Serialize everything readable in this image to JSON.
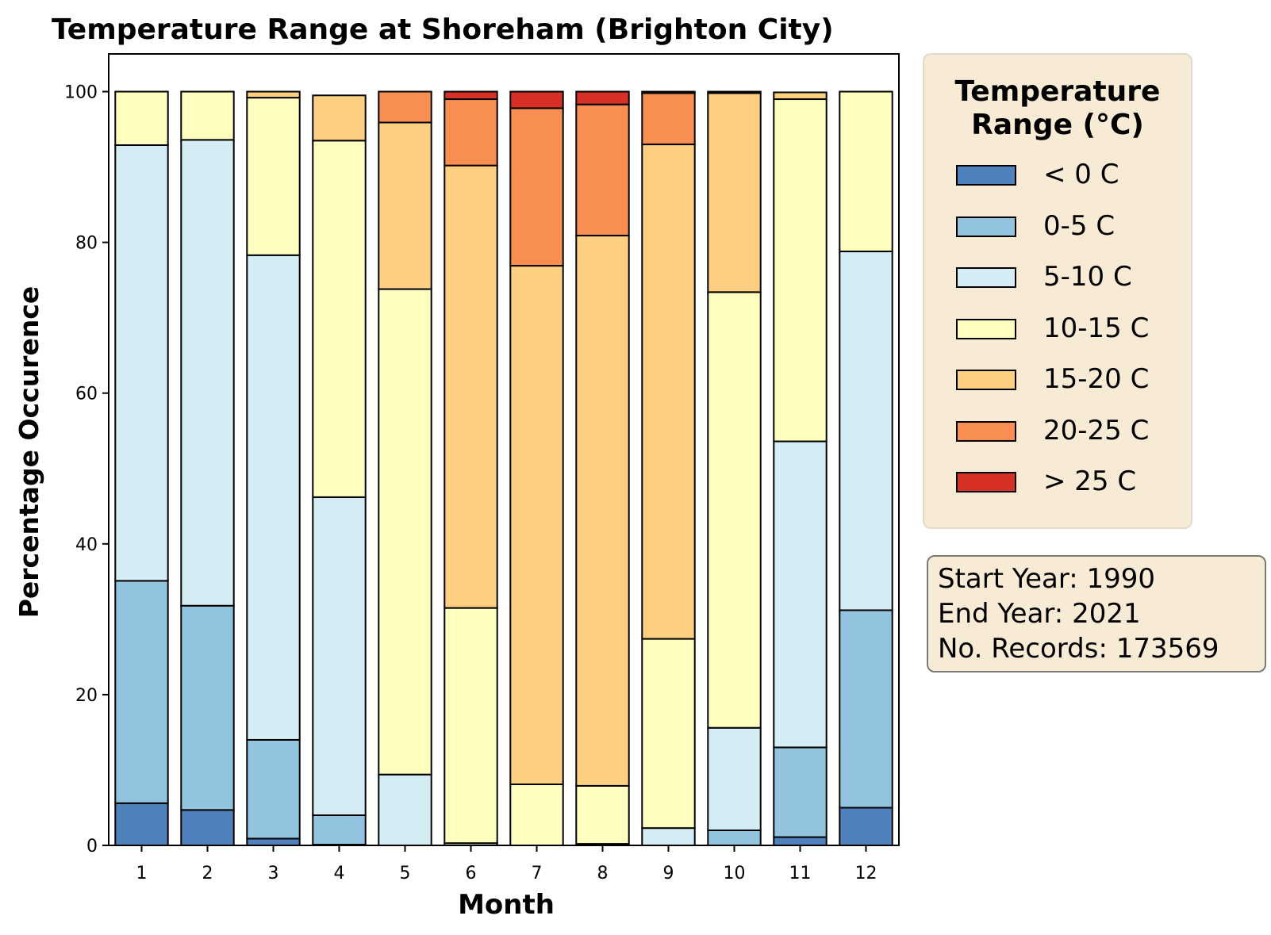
{
  "chart_data": {
    "type": "bar",
    "stacked": true,
    "title": "Temperature Range at Shoreham (Brighton City)",
    "xlabel": "Month",
    "ylabel": "Percentage Occurence",
    "ylim": [
      0,
      105
    ],
    "yticks": [
      0,
      20,
      40,
      60,
      80,
      100
    ],
    "categories": [
      "1",
      "2",
      "3",
      "4",
      "5",
      "6",
      "7",
      "8",
      "9",
      "10",
      "11",
      "12"
    ],
    "series": [
      {
        "name": "< 0 C",
        "color": "#4f81bd",
        "values": [
          5.6,
          4.7,
          0.9,
          0.1,
          0,
          0,
          0,
          0,
          0,
          0,
          1.1,
          5.0
        ]
      },
      {
        "name": "0-5 C",
        "color": "#92c4df",
        "values": [
          29.5,
          27.1,
          13.1,
          3.9,
          0,
          0,
          0,
          0,
          0,
          2.0,
          11.9,
          26.2
        ]
      },
      {
        "name": "5-10 C",
        "color": "#d4ecf3",
        "values": [
          57.8,
          61.8,
          64.3,
          42.2,
          9.4,
          0.3,
          0,
          0.2,
          2.3,
          13.6,
          40.6,
          47.6
        ]
      },
      {
        "name": "10-15 C",
        "color": "#fefebe",
        "values": [
          7.1,
          6.4,
          20.9,
          47.3,
          64.4,
          31.2,
          8.1,
          7.7,
          25.1,
          57.8,
          45.4,
          21.2
        ]
      },
      {
        "name": "15-20 C",
        "color": "#fccf81",
        "values": [
          0,
          0,
          0.8,
          6.0,
          22.1,
          58.7,
          68.8,
          73.0,
          65.6,
          26.4,
          0.9,
          0
        ]
      },
      {
        "name": "20-25 C",
        "color": "#f88e52",
        "values": [
          0,
          0,
          0,
          0,
          4.1,
          8.8,
          20.9,
          17.4,
          6.8,
          0.2,
          0,
          0
        ]
      },
      {
        "name": "> 25 C",
        "color": "#d73027",
        "values": [
          0,
          0,
          0,
          0,
          0,
          1.0,
          2.2,
          1.7,
          0.2,
          0,
          0,
          0
        ]
      }
    ]
  },
  "legend": {
    "title_line1": "Temperature",
    "title_line2": "Range (°C)"
  },
  "info": {
    "start_year": "Start Year: 1990",
    "end_year": "End Year: 2021",
    "records": "No. Records: 173569"
  }
}
